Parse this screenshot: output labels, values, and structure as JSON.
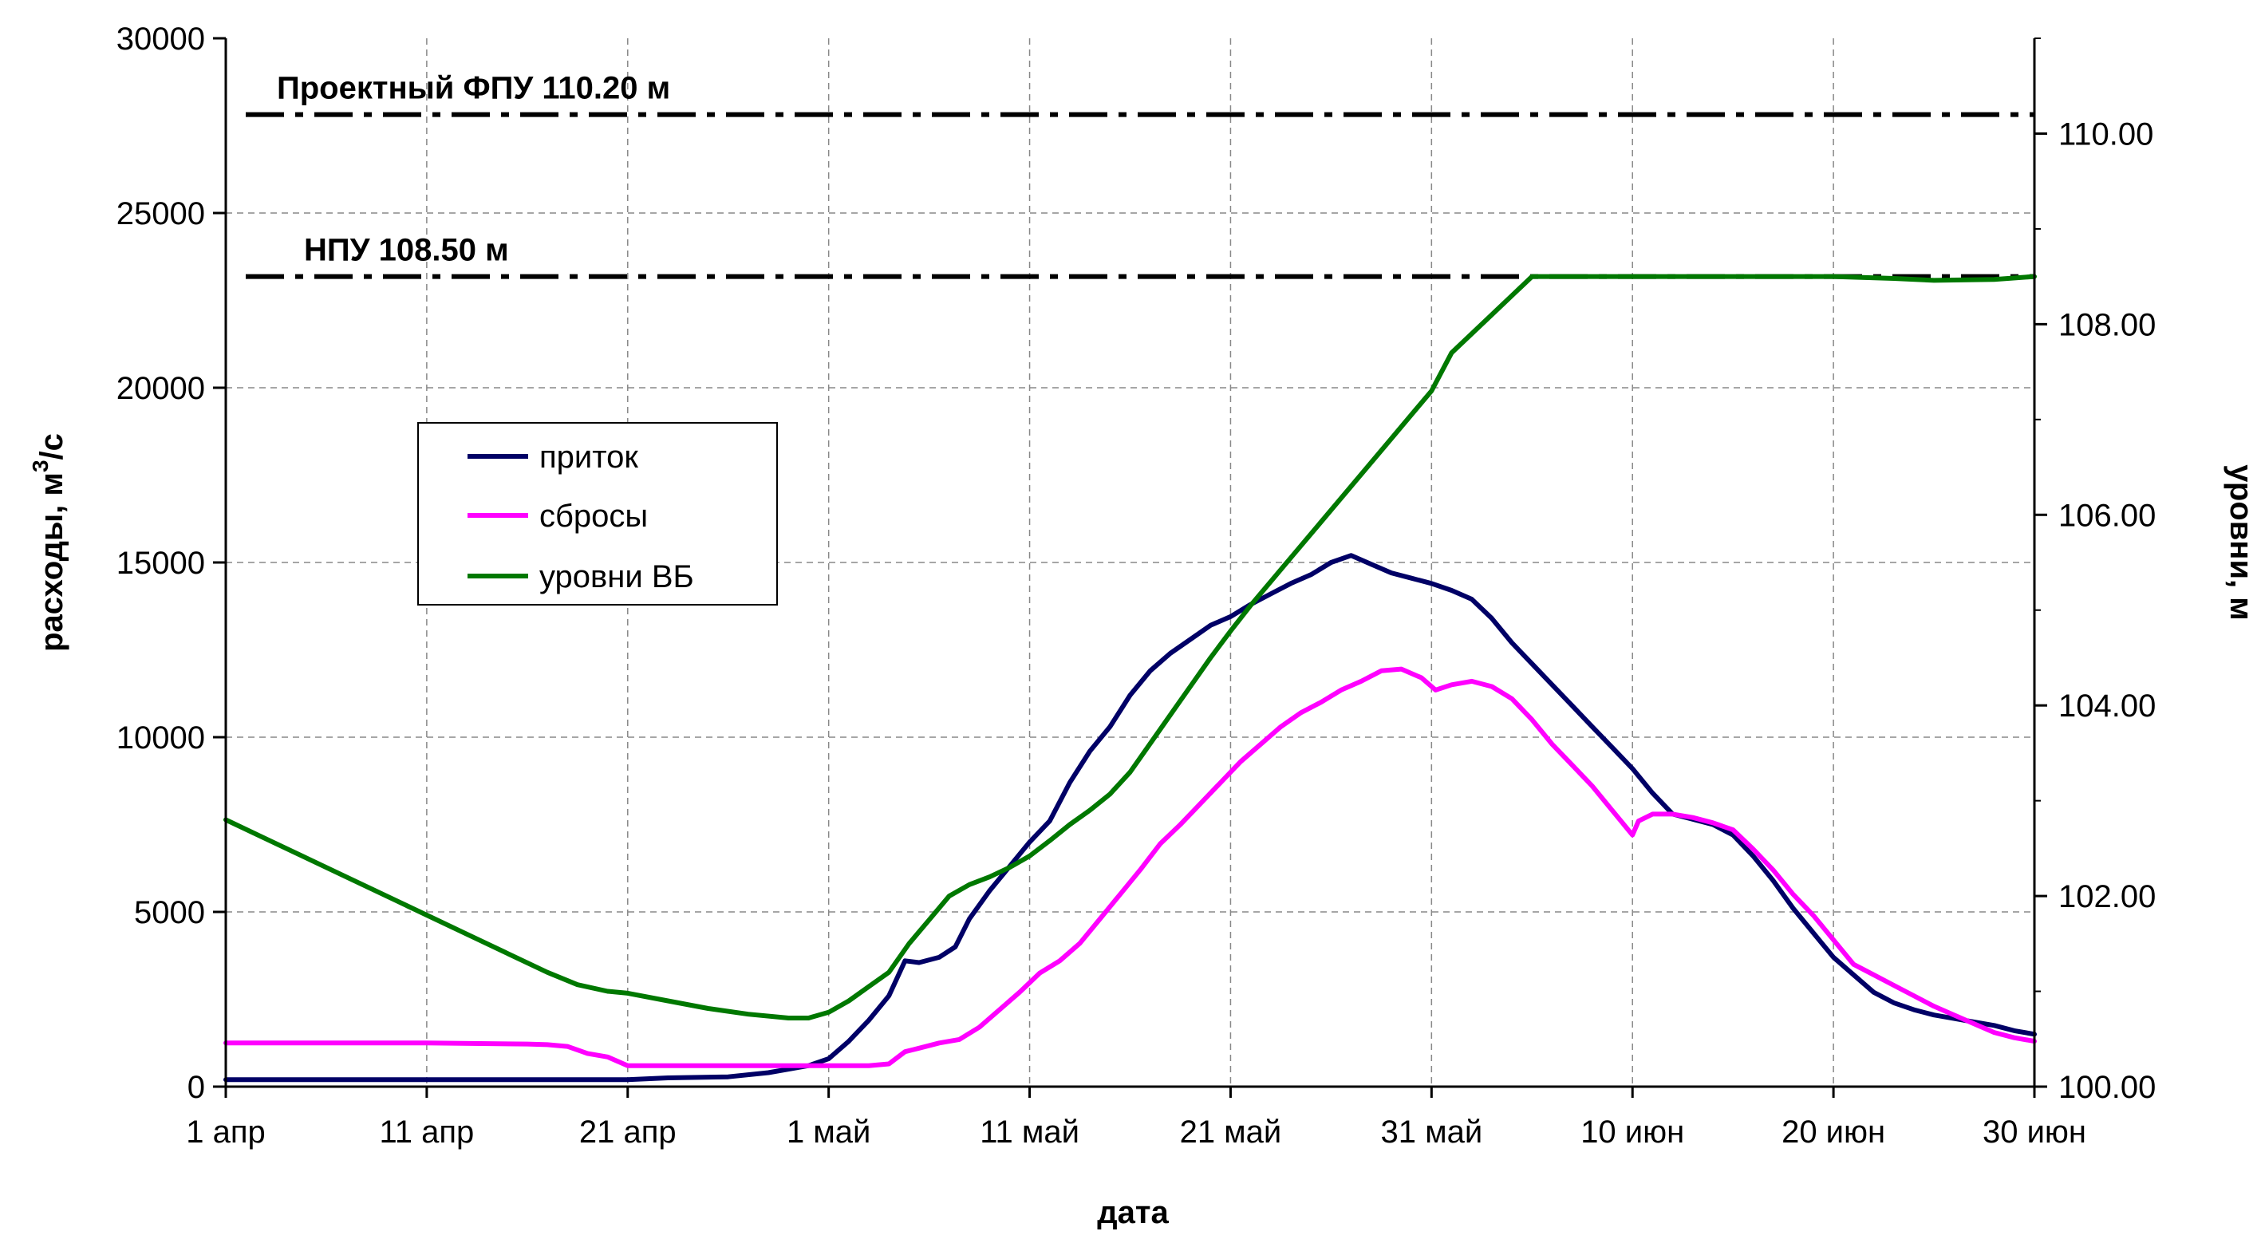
{
  "chart_data": {
    "type": "line",
    "xlabel": "дата",
    "ylabel_left": "расходы, м",
    "ylabel_left_sup": "3",
    "ylabel_left_suffix": "/с",
    "ylabel_right": "уровни, м",
    "x_tick_labels": [
      "1 апр",
      "11 апр",
      "21 апр",
      "1 май",
      "11 май",
      "21 май",
      "31 май",
      "10 июн",
      "20 июн",
      "30 июн"
    ],
    "x_range_days": [
      0,
      90
    ],
    "y_left_range": [
      0,
      30000
    ],
    "y_left_ticks": [
      "0",
      "5000",
      "10000",
      "15000",
      "20000",
      "25000",
      "30000"
    ],
    "y_right_range": [
      100,
      111
    ],
    "y_right_ticks": [
      "100.00",
      "102.00",
      "104.00",
      "106.00",
      "108.00",
      "110.00"
    ],
    "grid": true,
    "legend_position": "left-middle",
    "reference_lines": [
      {
        "label": "Проектный ФПУ 110.20 м",
        "value": 110.2
      },
      {
        "label": "НПУ 108.50 м",
        "value": 108.5
      }
    ],
    "series": [
      {
        "name": "приток",
        "axis": "left",
        "color": "#000066",
        "points": [
          [
            0,
            200
          ],
          [
            5,
            200
          ],
          [
            10,
            200
          ],
          [
            15,
            200
          ],
          [
            20,
            200
          ],
          [
            22,
            250
          ],
          [
            25,
            280
          ],
          [
            27,
            400
          ],
          [
            29,
            600
          ],
          [
            30,
            800
          ],
          [
            31,
            1300
          ],
          [
            32,
            1900
          ],
          [
            33,
            2600
          ],
          [
            33.8,
            3600
          ],
          [
            34.5,
            3550
          ],
          [
            35.5,
            3700
          ],
          [
            36.3,
            4000
          ],
          [
            37,
            4800
          ],
          [
            38,
            5600
          ],
          [
            39,
            6300
          ],
          [
            40,
            7000
          ],
          [
            41,
            7600
          ],
          [
            42,
            8700
          ],
          [
            43,
            9600
          ],
          [
            44,
            10300
          ],
          [
            45,
            11200
          ],
          [
            46,
            11900
          ],
          [
            47,
            12400
          ],
          [
            48,
            12800
          ],
          [
            49,
            13200
          ],
          [
            50,
            13450
          ],
          [
            51,
            13800
          ],
          [
            52,
            14100
          ],
          [
            53,
            14400
          ],
          [
            54,
            14650
          ],
          [
            55,
            15000
          ],
          [
            56,
            15200
          ],
          [
            57,
            14950
          ],
          [
            58,
            14700
          ],
          [
            59,
            14550
          ],
          [
            60,
            14400
          ],
          [
            61,
            14200
          ],
          [
            62,
            13950
          ],
          [
            63,
            13400
          ],
          [
            64,
            12700
          ],
          [
            65,
            12100
          ],
          [
            66,
            11500
          ],
          [
            67,
            10900
          ],
          [
            68,
            10300
          ],
          [
            69,
            9700
          ],
          [
            70,
            9100
          ],
          [
            71,
            8400
          ],
          [
            72,
            7800
          ],
          [
            73,
            7650
          ],
          [
            74,
            7500
          ],
          [
            75,
            7200
          ],
          [
            76,
            6600
          ],
          [
            77,
            5900
          ],
          [
            78,
            5100
          ],
          [
            79,
            4400
          ],
          [
            80,
            3700
          ],
          [
            81,
            3200
          ],
          [
            82,
            2700
          ],
          [
            83,
            2400
          ],
          [
            84,
            2200
          ],
          [
            85,
            2050
          ],
          [
            86,
            1950
          ],
          [
            87,
            1850
          ],
          [
            88,
            1750
          ],
          [
            89,
            1600
          ],
          [
            90,
            1500
          ]
        ]
      },
      {
        "name": "сбросы",
        "axis": "left",
        "color": "#ff00ff",
        "points": [
          [
            0,
            1250
          ],
          [
            5,
            1250
          ],
          [
            10,
            1250
          ],
          [
            15,
            1220
          ],
          [
            16,
            1200
          ],
          [
            17,
            1150
          ],
          [
            18,
            950
          ],
          [
            19,
            850
          ],
          [
            20,
            600
          ],
          [
            22,
            600
          ],
          [
            25,
            600
          ],
          [
            28,
            600
          ],
          [
            30,
            600
          ],
          [
            31,
            600
          ],
          [
            32,
            600
          ],
          [
            33,
            650
          ],
          [
            33.8,
            1000
          ],
          [
            34.5,
            1100
          ],
          [
            35.5,
            1250
          ],
          [
            36.5,
            1350
          ],
          [
            37.5,
            1700
          ],
          [
            38.5,
            2200
          ],
          [
            39.5,
            2700
          ],
          [
            40.5,
            3250
          ],
          [
            41.5,
            3600
          ],
          [
            42.5,
            4100
          ],
          [
            43.5,
            4800
          ],
          [
            44.5,
            5500
          ],
          [
            45.5,
            6200
          ],
          [
            46.5,
            6950
          ],
          [
            47.5,
            7500
          ],
          [
            48.5,
            8100
          ],
          [
            49.5,
            8700
          ],
          [
            50.5,
            9300
          ],
          [
            51.5,
            9800
          ],
          [
            52.5,
            10300
          ],
          [
            53.5,
            10700
          ],
          [
            54.5,
            11000
          ],
          [
            55.5,
            11350
          ],
          [
            56.5,
            11600
          ],
          [
            57.5,
            11900
          ],
          [
            58.5,
            11950
          ],
          [
            59.5,
            11700
          ],
          [
            60.2,
            11350
          ],
          [
            61,
            11500
          ],
          [
            62,
            11600
          ],
          [
            63,
            11450
          ],
          [
            64,
            11100
          ],
          [
            65,
            10500
          ],
          [
            66,
            9800
          ],
          [
            67,
            9200
          ],
          [
            68,
            8600
          ],
          [
            69,
            7900
          ],
          [
            70,
            7200
          ],
          [
            70.3,
            7600
          ],
          [
            71,
            7800
          ],
          [
            72,
            7800
          ],
          [
            73,
            7700
          ],
          [
            74,
            7550
          ],
          [
            75,
            7350
          ],
          [
            76,
            6800
          ],
          [
            77,
            6200
          ],
          [
            78,
            5500
          ],
          [
            79,
            4900
          ],
          [
            80,
            4200
          ],
          [
            81,
            3500
          ],
          [
            82,
            3200
          ],
          [
            83,
            2900
          ],
          [
            84,
            2600
          ],
          [
            85,
            2300
          ],
          [
            86,
            2050
          ],
          [
            87,
            1800
          ],
          [
            88,
            1550
          ],
          [
            89,
            1400
          ],
          [
            90,
            1300
          ]
        ]
      },
      {
        "name": "уровни ВБ",
        "axis": "right",
        "color": "#007800",
        "points": [
          [
            0,
            102.8
          ],
          [
            2,
            102.6
          ],
          [
            4,
            102.4
          ],
          [
            6,
            102.2
          ],
          [
            8,
            102.0
          ],
          [
            10,
            101.8
          ],
          [
            12,
            101.6
          ],
          [
            14,
            101.4
          ],
          [
            16,
            101.2
          ],
          [
            17.5,
            101.07
          ],
          [
            19,
            101.0
          ],
          [
            20,
            100.98
          ],
          [
            22,
            100.9
          ],
          [
            24,
            100.82
          ],
          [
            26,
            100.76
          ],
          [
            28,
            100.72
          ],
          [
            29,
            100.72
          ],
          [
            30,
            100.78
          ],
          [
            31,
            100.9
          ],
          [
            32,
            101.05
          ],
          [
            33,
            101.2
          ],
          [
            34,
            101.5
          ],
          [
            35,
            101.75
          ],
          [
            36,
            102.0
          ],
          [
            37,
            102.12
          ],
          [
            38,
            102.2
          ],
          [
            39,
            102.3
          ],
          [
            40,
            102.42
          ],
          [
            41,
            102.58
          ],
          [
            42,
            102.75
          ],
          [
            43,
            102.9
          ],
          [
            44,
            103.07
          ],
          [
            45,
            103.3
          ],
          [
            46,
            103.6
          ],
          [
            47,
            103.9
          ],
          [
            48,
            104.2
          ],
          [
            49,
            104.5
          ],
          [
            50,
            104.78
          ],
          [
            51,
            105.05
          ],
          [
            52,
            105.3
          ],
          [
            53,
            105.55
          ],
          [
            54,
            105.8
          ],
          [
            55,
            106.05
          ],
          [
            56,
            106.3
          ],
          [
            57,
            106.55
          ],
          [
            58,
            106.8
          ],
          [
            59,
            107.05
          ],
          [
            60,
            107.3
          ],
          [
            61,
            107.7
          ],
          [
            62,
            107.9
          ],
          [
            63,
            108.1
          ],
          [
            64,
            108.3
          ],
          [
            65,
            108.5
          ],
          [
            66,
            108.5
          ],
          [
            67,
            108.5
          ],
          [
            68,
            108.5
          ],
          [
            69,
            108.5
          ],
          [
            70,
            108.5
          ],
          [
            71,
            108.5
          ],
          [
            75,
            108.5
          ],
          [
            80,
            108.5
          ],
          [
            83,
            108.48
          ],
          [
            85,
            108.46
          ],
          [
            88,
            108.47
          ],
          [
            90,
            108.5
          ]
        ]
      }
    ]
  }
}
